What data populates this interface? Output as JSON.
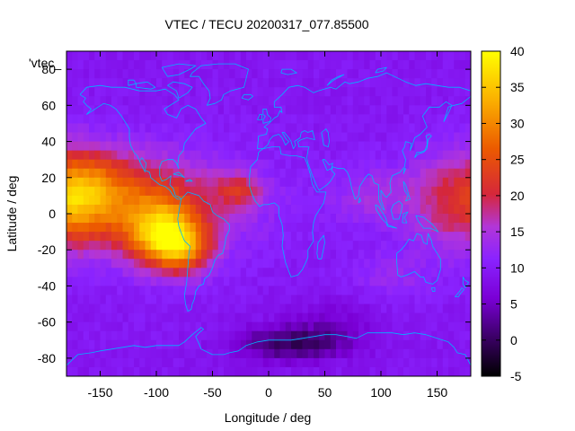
{
  "chart_data": {
    "type": "heatmap",
    "title": "VTEC / TECU 20200317_077.85500",
    "xlabel": "Longitude / deg",
    "ylabel": "Latitude / deg",
    "series_label": "'vtec_",
    "xlim": [
      -180,
      180
    ],
    "ylim": [
      -90,
      90
    ],
    "x_ticks": [
      -150,
      -100,
      -50,
      0,
      50,
      100,
      150
    ],
    "y_ticks": [
      -80,
      -60,
      -40,
      -20,
      0,
      20,
      40,
      60,
      80
    ],
    "colorbar": {
      "range": [
        -5,
        40
      ],
      "ticks": [
        -5,
        0,
        5,
        10,
        15,
        20,
        25,
        30,
        35,
        40
      ],
      "palette": [
        "#000000",
        "#3b0066",
        "#7a00d6",
        "#8a23ff",
        "#b236d8",
        "#d5273a",
        "#ec5a00",
        "#fbb000",
        "#ffff00"
      ]
    },
    "background_tecu": 10,
    "features": [
      {
        "name": "equatorial-anomaly-americas",
        "lon": -100,
        "lat": -10,
        "tecu": 34
      },
      {
        "name": "equatorial-band-pacific-east",
        "lon": -150,
        "lat": 10,
        "tecu": 25
      },
      {
        "name": "equatorial-band-west-pacific",
        "lon": 160,
        "lat": 5,
        "tecu": 24
      },
      {
        "name": "atlantic-patch",
        "lon": -30,
        "lat": 15,
        "tecu": 20
      },
      {
        "name": "south-polar-minimum",
        "lon": 20,
        "lat": -72,
        "tecu": 0
      }
    ],
    "map_overlay": "coastlines",
    "coastline_color": "#00b4ff",
    "grid": false,
    "legend_position": "top-left"
  }
}
